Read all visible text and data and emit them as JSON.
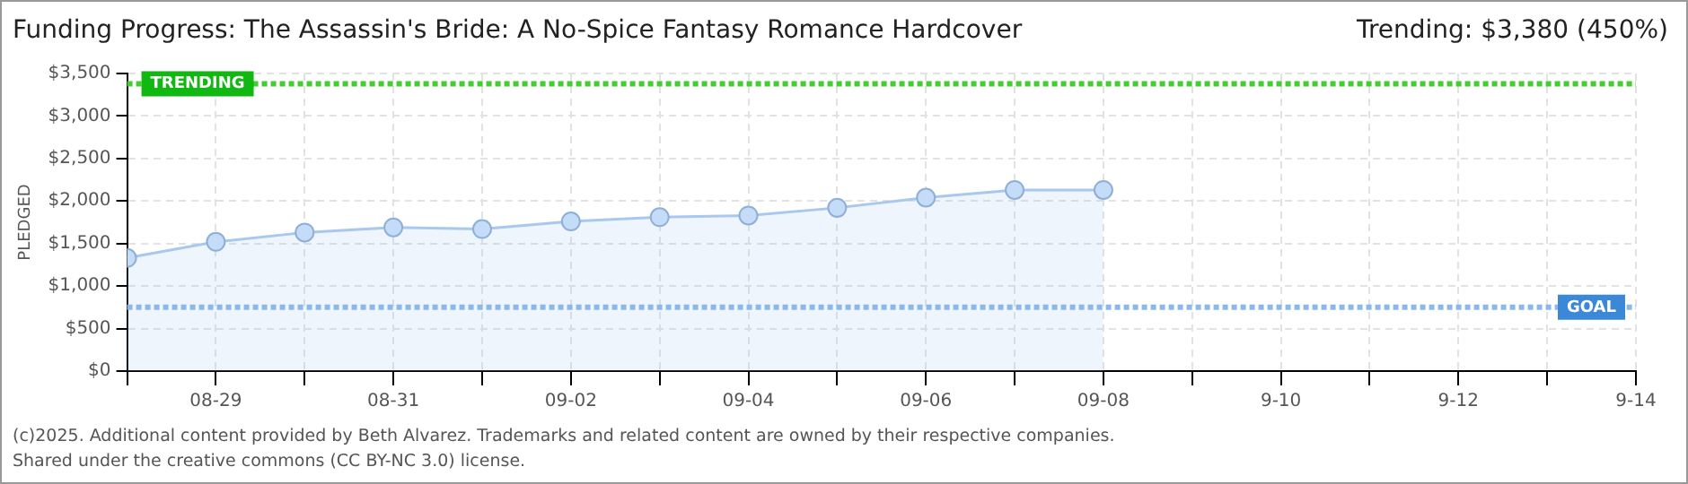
{
  "chart_data": {
    "type": "area",
    "title": "Funding Progress: The Assassin's Bride: A No-Spice Fantasy Romance Hardcover",
    "subtitle": "Trending: $3,380 (450%)",
    "ylabel": "PLEDGED",
    "x": [
      "--08-28",
      "--08-29",
      "--08-30",
      "--08-31",
      "--09-01",
      "--09-02",
      "--09-03",
      "--09-04",
      "--09-05",
      "--09-06",
      "--09-07",
      "--09-08"
    ],
    "series": [
      {
        "color": "#a9c8ee",
        "values": [
          1330,
          1520,
          1630,
          1690,
          1670,
          1760,
          1810,
          1830,
          1920,
          2040,
          2130,
          2130
        ]
      }
    ],
    "xlim": [
      "--08-28",
      "--09-14"
    ],
    "xticks": [
      {
        "value": "--08-28",
        "label": null
      },
      {
        "value": "--08-29",
        "label": "08-29"
      },
      {
        "value": "--08-30",
        "label": null
      },
      {
        "value": "--08-31",
        "label": "08-31"
      },
      {
        "value": "--09-01",
        "label": null
      },
      {
        "value": "--09-02",
        "label": "09-02"
      },
      {
        "value": "--09-03",
        "label": null
      },
      {
        "value": "--09-04",
        "label": "09-04"
      },
      {
        "value": "--09-05",
        "label": null
      },
      {
        "value": "--09-06",
        "label": "09-06"
      },
      {
        "value": "--09-07",
        "label": null
      },
      {
        "value": "--09-08",
        "label": "09-08"
      },
      {
        "value": "--09-09",
        "label": null
      },
      {
        "value": "--09-10",
        "label": "9-10"
      },
      {
        "value": "--09-11",
        "label": null
      },
      {
        "value": "--09-12",
        "label": "9-12"
      },
      {
        "value": "--09-13",
        "label": null
      },
      {
        "value": "--09-14",
        "label": "9-14"
      }
    ],
    "ylim": [
      0,
      3500
    ],
    "yticks": [
      {
        "value": 0,
        "label": "$0"
      },
      {
        "value": 500,
        "label": "$500"
      },
      {
        "value": 1000,
        "label": "$1,000"
      },
      {
        "value": 1500,
        "label": "$1,500"
      },
      {
        "value": 2000,
        "label": "$2,000"
      },
      {
        "value": 2500,
        "label": "$2,500"
      },
      {
        "value": 3000,
        "label": "$3,000"
      },
      {
        "value": 3500,
        "label": "$3,500"
      }
    ],
    "ref_lines": [
      {
        "axis": "y",
        "value": 3380,
        "label": "TRENDING",
        "color": "#44cc33",
        "line_style": "dotted"
      },
      {
        "axis": "y",
        "value": 750,
        "label": "GOAL",
        "color": "#8ab8ec",
        "line_style": "dotted"
      }
    ],
    "annotations": [
      "(c)2025. Additional content provided by Beth Alvarez. Trademarks and related content are owned by their respective companies.",
      "Shared under the creative commons (CC BY-NC 3.0) license."
    ],
    "grid": true,
    "marker": "circle",
    "legend": false
  }
}
